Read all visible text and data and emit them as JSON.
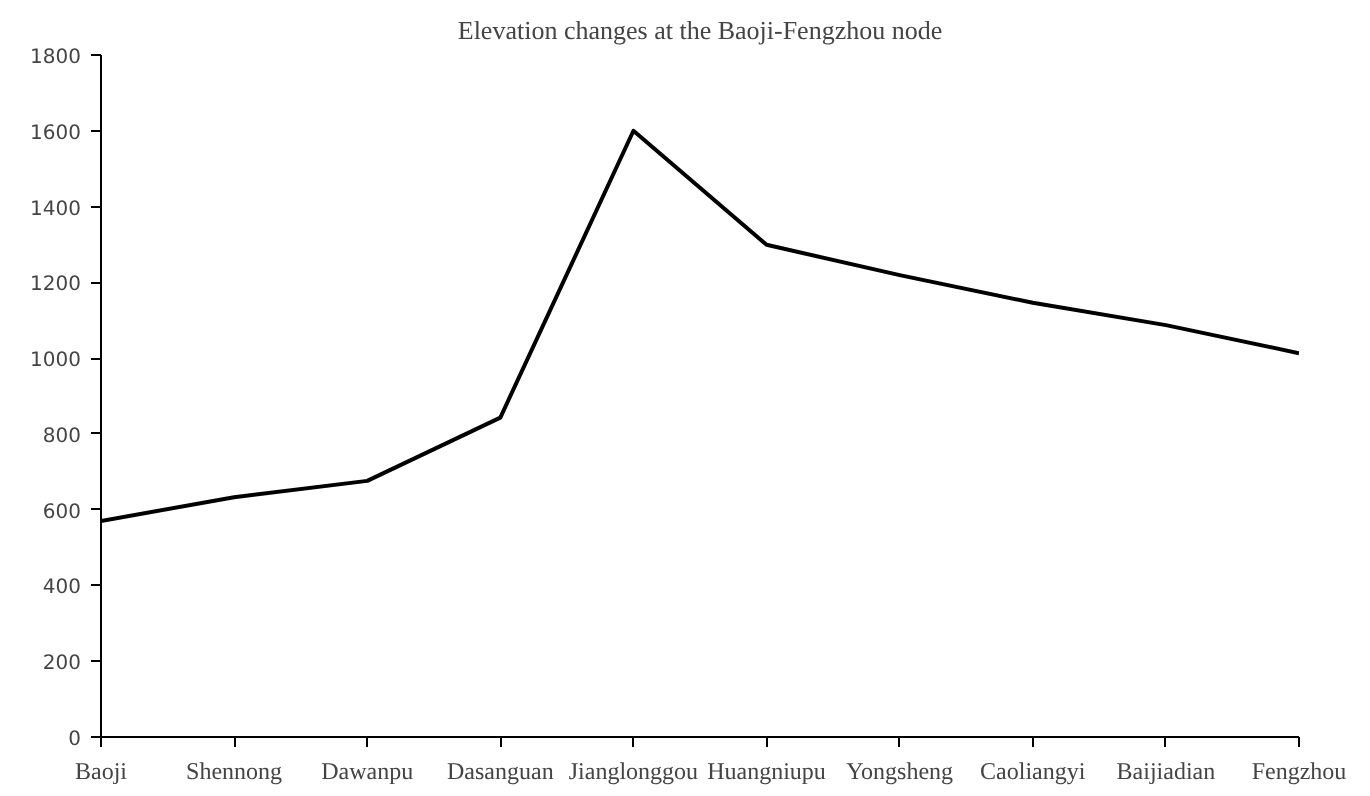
{
  "chart_data": {
    "type": "line",
    "title": "Elevation changes at the Baoji-Fengzhou node",
    "categories": [
      "Baoji",
      "Shennong",
      "Dawanpu",
      "Dasanguan",
      "Jianglonggou",
      "Huangniupu",
      "Yongsheng",
      "Caoliangyi",
      "Baijiadian",
      "Fengzhou"
    ],
    "series": [
      {
        "color": "#000000",
        "values": [
          570,
          633,
          676,
          843,
          1600,
          1299,
          1219,
          1146,
          1087,
          1013
        ]
      }
    ],
    "ylim": [
      0,
      1800
    ],
    "yticks": [
      0,
      200,
      400,
      600,
      800,
      1000,
      1200,
      1400,
      1600,
      1800
    ],
    "grid": false,
    "marker": "none",
    "line_style": "solid"
  }
}
